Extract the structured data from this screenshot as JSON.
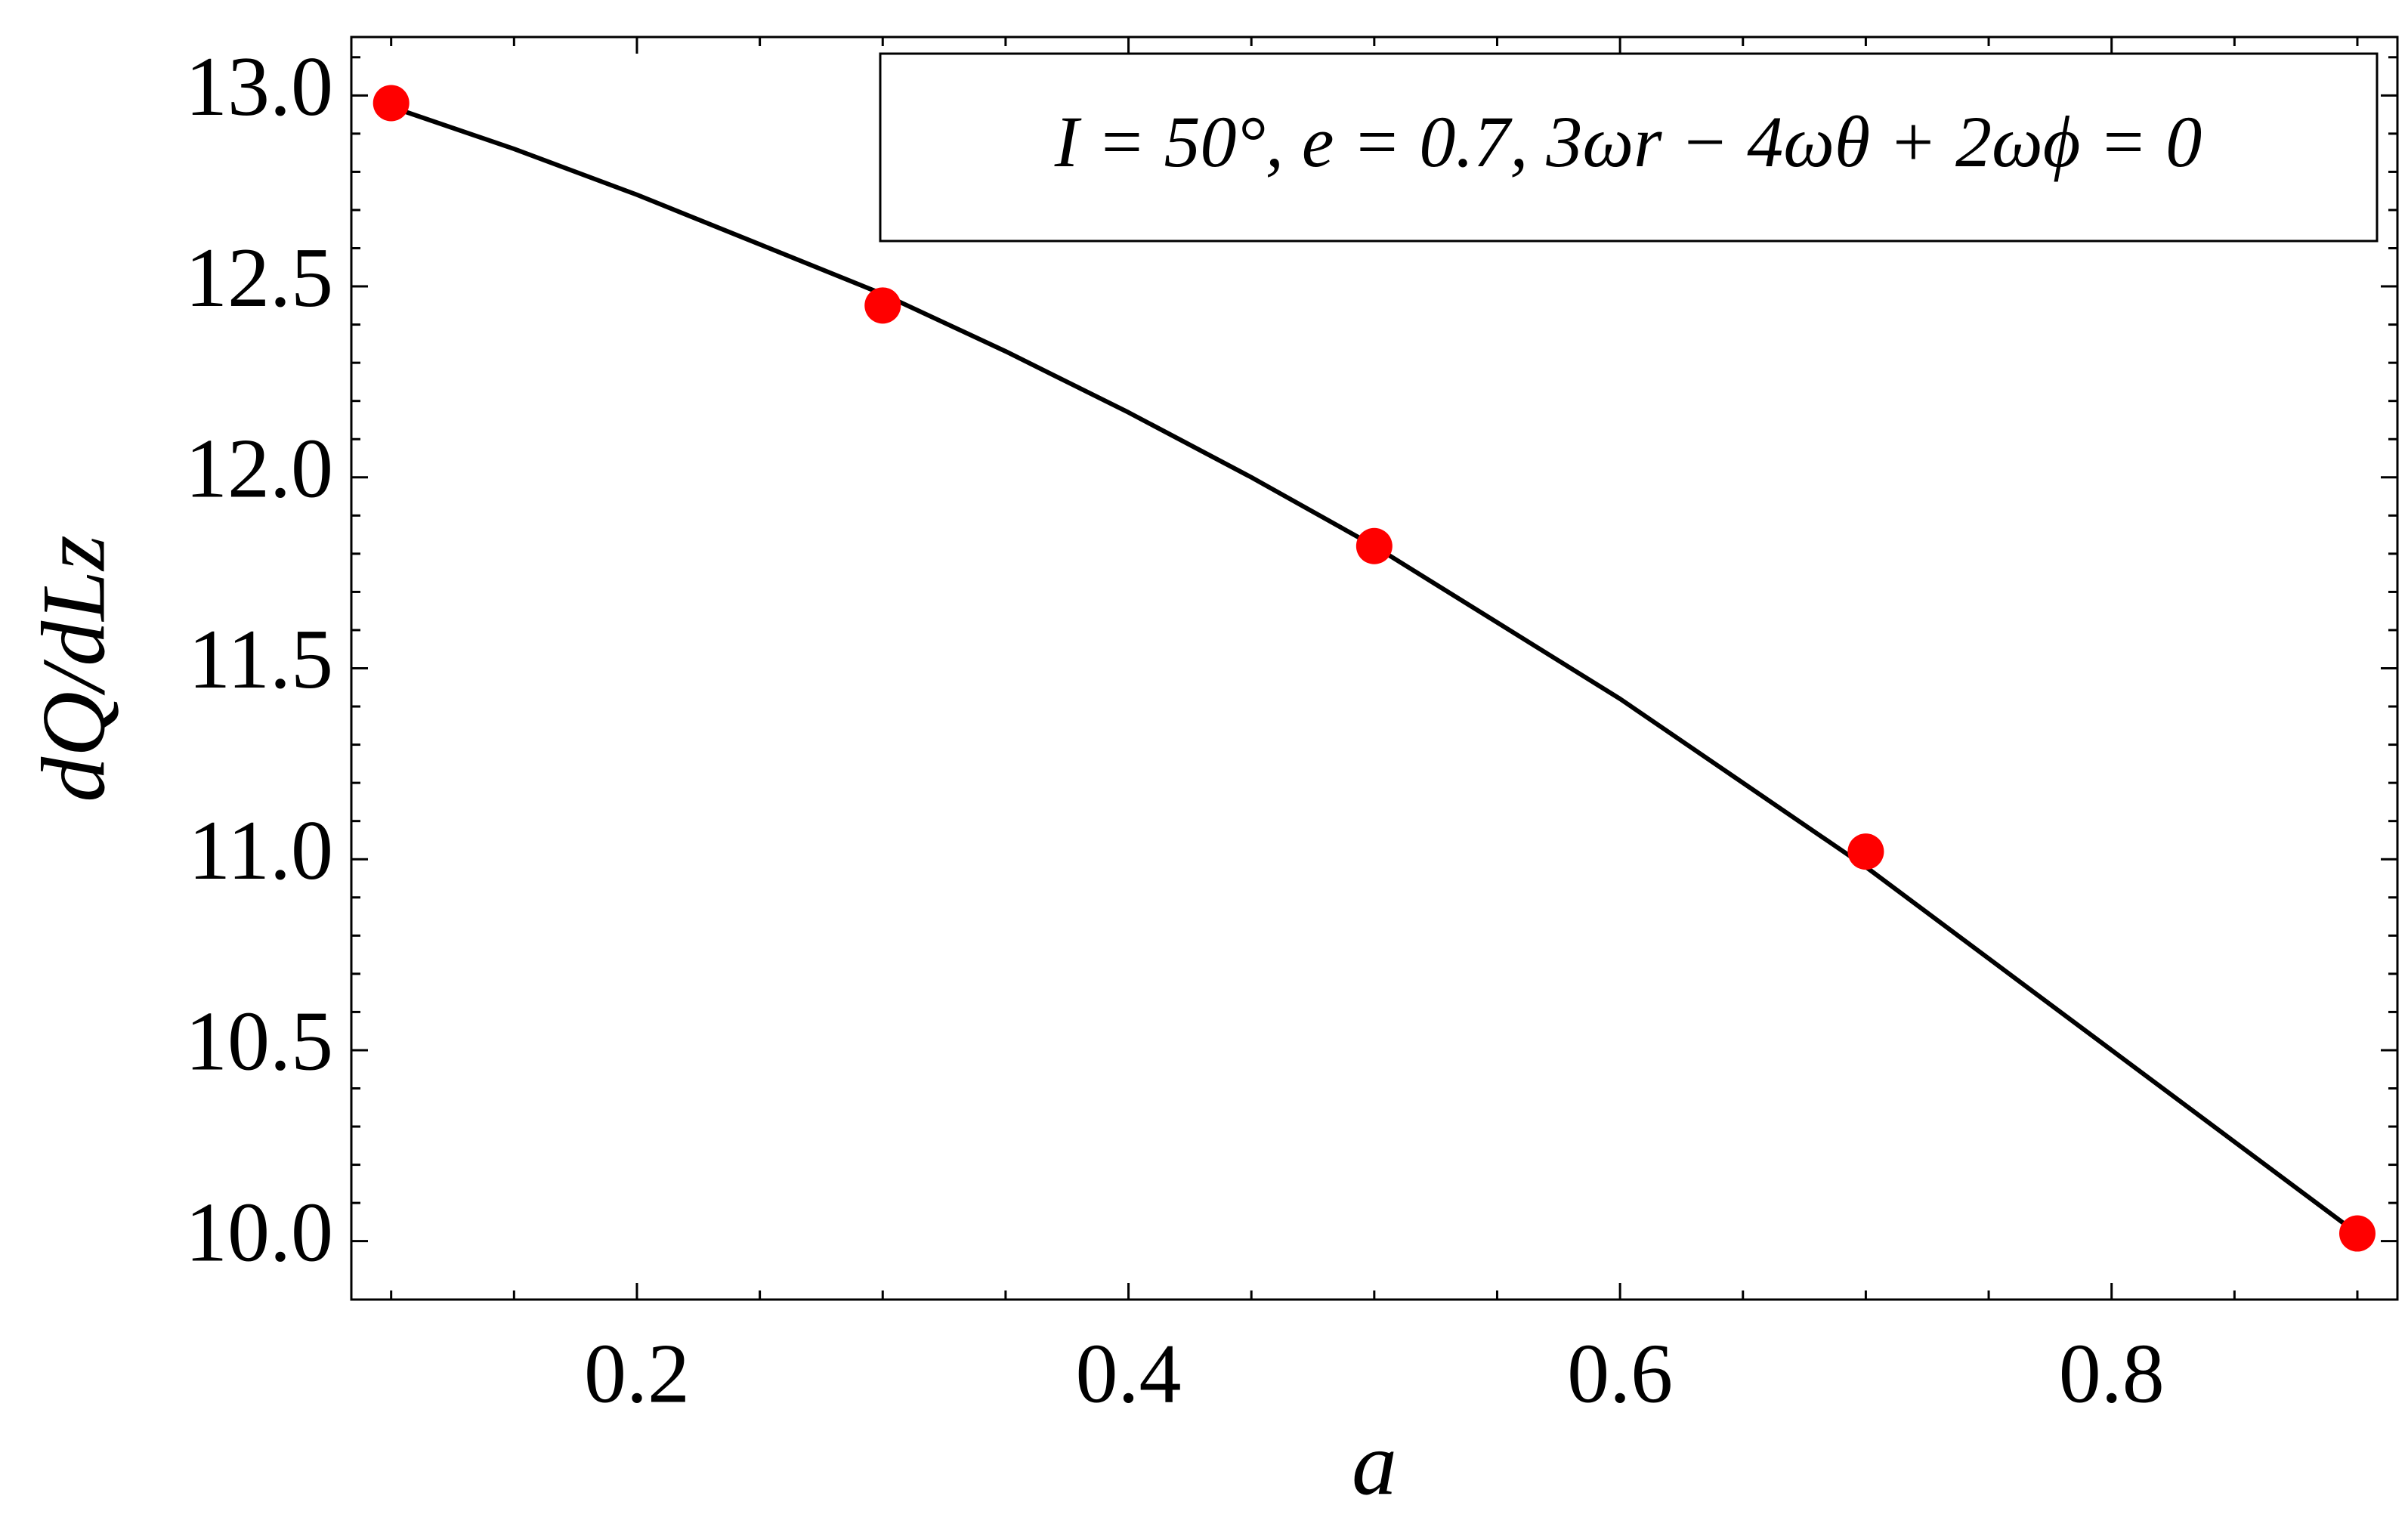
{
  "chart_data": {
    "type": "line",
    "annotation": "I = 50°,  e = 0.7,  3ωr − 4ωθ + 2ωϕ = 0",
    "xlabel": "a",
    "ylabel": "dQ/dLz",
    "series": [
      {
        "style": "line",
        "color": "#000000",
        "x": [
          0.1,
          0.15,
          0.2,
          0.25,
          0.3,
          0.35,
          0.4,
          0.45,
          0.5,
          0.55,
          0.6,
          0.65,
          0.7,
          0.75,
          0.8,
          0.85,
          0.9
        ],
        "values": [
          12.97,
          12.86,
          12.74,
          12.61,
          12.48,
          12.33,
          12.17,
          12.0,
          11.82,
          11.62,
          11.42,
          11.2,
          10.98,
          10.74,
          10.5,
          10.26,
          10.02
        ]
      },
      {
        "style": "markers",
        "color": "#ff0000",
        "x": [
          0.1,
          0.3,
          0.5,
          0.7,
          0.9
        ],
        "values": [
          12.98,
          12.45,
          11.82,
          11.02,
          10.02
        ]
      }
    ],
    "xlim": [
      0.0838,
      0.9163
    ],
    "ylim": [
      9.847,
      13.153
    ],
    "xticks": [
      0.2,
      0.4,
      0.6,
      0.8
    ],
    "yticks": [
      {
        "value": 10,
        "label": "10.0"
      },
      10.5,
      {
        "value": 11,
        "label": "11.0"
      },
      11.5,
      {
        "value": 12,
        "label": "12.0"
      },
      12.5,
      {
        "value": 13,
        "label": "13.0"
      }
    ],
    "xminorticks": [
      0.1,
      0.15,
      0.25,
      0.3,
      0.35,
      0.45,
      0.5,
      0.55,
      0.65,
      0.7,
      0.75,
      0.85,
      0.9
    ],
    "yminorticks": [
      10.1,
      10.2,
      10.3,
      10.4,
      10.6,
      10.7,
      10.8,
      10.9,
      11.1,
      11.2,
      11.3,
      11.4,
      11.6,
      11.7,
      11.8,
      11.9,
      12.1,
      12.2,
      12.3,
      12.4,
      12.6,
      12.7,
      12.8,
      12.9,
      13.1
    ]
  }
}
